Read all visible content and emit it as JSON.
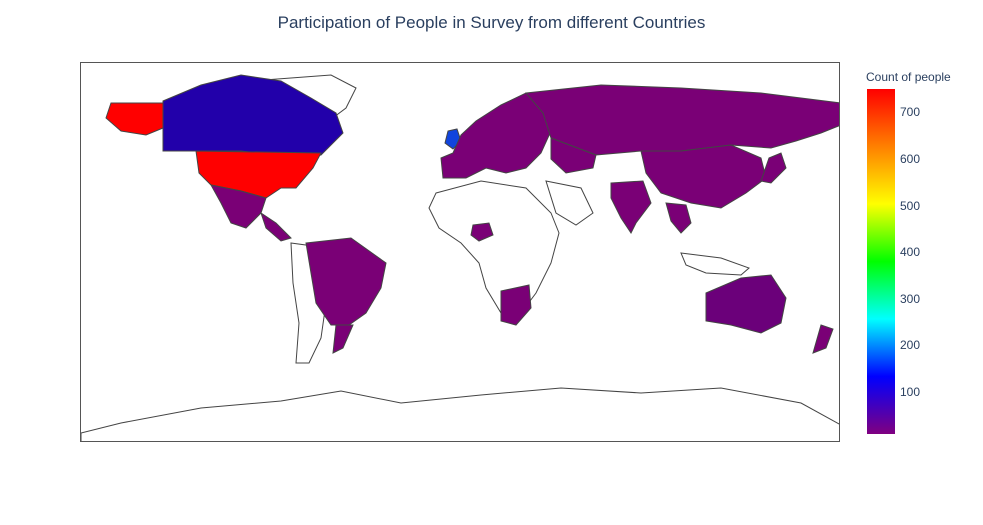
{
  "title": "Participation of People in Survey from different Countries",
  "colorbar": {
    "title": "Count of people",
    "ticks": [
      "100",
      "200",
      "300",
      "400",
      "500",
      "600",
      "700"
    ],
    "colorscale": [
      "#800080",
      "#0000ff",
      "#00ffff",
      "#00ff00",
      "#ffff00",
      "#ff8000",
      "#ff0000"
    ]
  },
  "chart_data": {
    "type": "choropleth",
    "title": "Participation of People in Survey from different Countries",
    "colorbar_title": "Count of people",
    "range": [
      10,
      750
    ],
    "values": [
      {
        "country": "United States",
        "count": 750
      },
      {
        "country": "Canada",
        "count": 70
      },
      {
        "country": "United Kingdom",
        "count": 180
      },
      {
        "country": "Germany",
        "count": 40
      },
      {
        "country": "Netherlands",
        "count": 40
      },
      {
        "country": "Russia",
        "count": 20
      },
      {
        "country": "India",
        "count": 20
      },
      {
        "country": "Australia",
        "count": 30
      },
      {
        "country": "Brazil",
        "count": 20
      },
      {
        "country": "Mexico",
        "count": 15
      },
      {
        "country": "China",
        "count": 10
      },
      {
        "country": "Japan",
        "count": 10
      },
      {
        "country": "South Africa",
        "count": 15
      },
      {
        "country": "New Zealand",
        "count": 10
      },
      {
        "country": "Nigeria",
        "count": 10
      }
    ]
  }
}
